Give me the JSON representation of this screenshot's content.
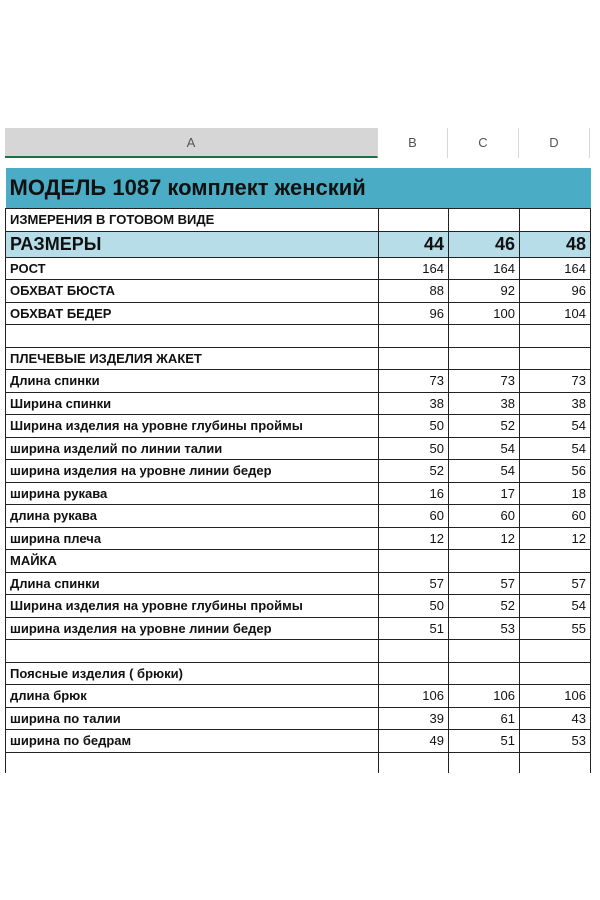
{
  "columns": [
    "A",
    "B",
    "C",
    "D"
  ],
  "title": "МОДЕЛЬ 1087 комплект женский",
  "subtitle": "ИЗМЕРЕНИЯ В ГОТОВОМ ВИДЕ",
  "sizes_label": "РАЗМЕРЫ",
  "sizes": [
    "44",
    "46",
    "48"
  ],
  "rows": [
    {
      "label": "РОСТ",
      "values": [
        "164",
        "164",
        "164"
      ]
    },
    {
      "label": "ОБХВАТ БЮСТА",
      "values": [
        "88",
        "92",
        "96"
      ]
    },
    {
      "label": "ОБХВАТ БЕДЕР",
      "values": [
        "96",
        "100",
        "104"
      ]
    },
    {
      "label": "",
      "values": [
        "",
        "",
        ""
      ]
    },
    {
      "label": "ПЛЕЧЕВЫЕ ИЗДЕЛИЯ  ЖАКЕТ",
      "values": [
        "",
        "",
        ""
      ]
    },
    {
      "label": "Длина спинки",
      "values": [
        "73",
        "73",
        "73"
      ]
    },
    {
      "label": "Ширина спинки",
      "values": [
        "38",
        "38",
        "38"
      ]
    },
    {
      "label": "Ширина изделия на уровне глубины проймы",
      "values": [
        "50",
        "52",
        "54"
      ]
    },
    {
      "label": "ширина изделий по линии талии",
      "values": [
        "50",
        "54",
        "54"
      ]
    },
    {
      "label": "ширина изделия на уровне линии бедер",
      "values": [
        "52",
        "54",
        "56"
      ]
    },
    {
      "label": "ширина рукава",
      "values": [
        "16",
        "17",
        "18"
      ]
    },
    {
      "label": "длина рукава",
      "values": [
        "60",
        "60",
        "60"
      ]
    },
    {
      "label": "ширина плеча",
      "values": [
        "12",
        "12",
        "12"
      ]
    },
    {
      "label": "МАЙКА",
      "values": [
        "",
        "",
        ""
      ]
    },
    {
      "label": "Длина спинки",
      "values": [
        "57",
        "57",
        "57"
      ]
    },
    {
      "label": "Ширина изделия на уровне глубины проймы",
      "values": [
        "50",
        "52",
        "54"
      ]
    },
    {
      "label": "ширина изделия на уровне линии бедер",
      "values": [
        "51",
        "53",
        "55"
      ]
    },
    {
      "label": "",
      "values": [
        "",
        "",
        ""
      ]
    },
    {
      "label": "Поясные изделия ( брюки)",
      "values": [
        "",
        "",
        ""
      ]
    },
    {
      "label": "длина  брюк",
      "values": [
        "106",
        "106",
        "106"
      ]
    },
    {
      "label": "ширина   по талии",
      "values": [
        "39",
        "61",
        "43"
      ]
    },
    {
      "label": "ширина по бедрам",
      "values": [
        "49",
        "51",
        "53"
      ]
    }
  ]
}
